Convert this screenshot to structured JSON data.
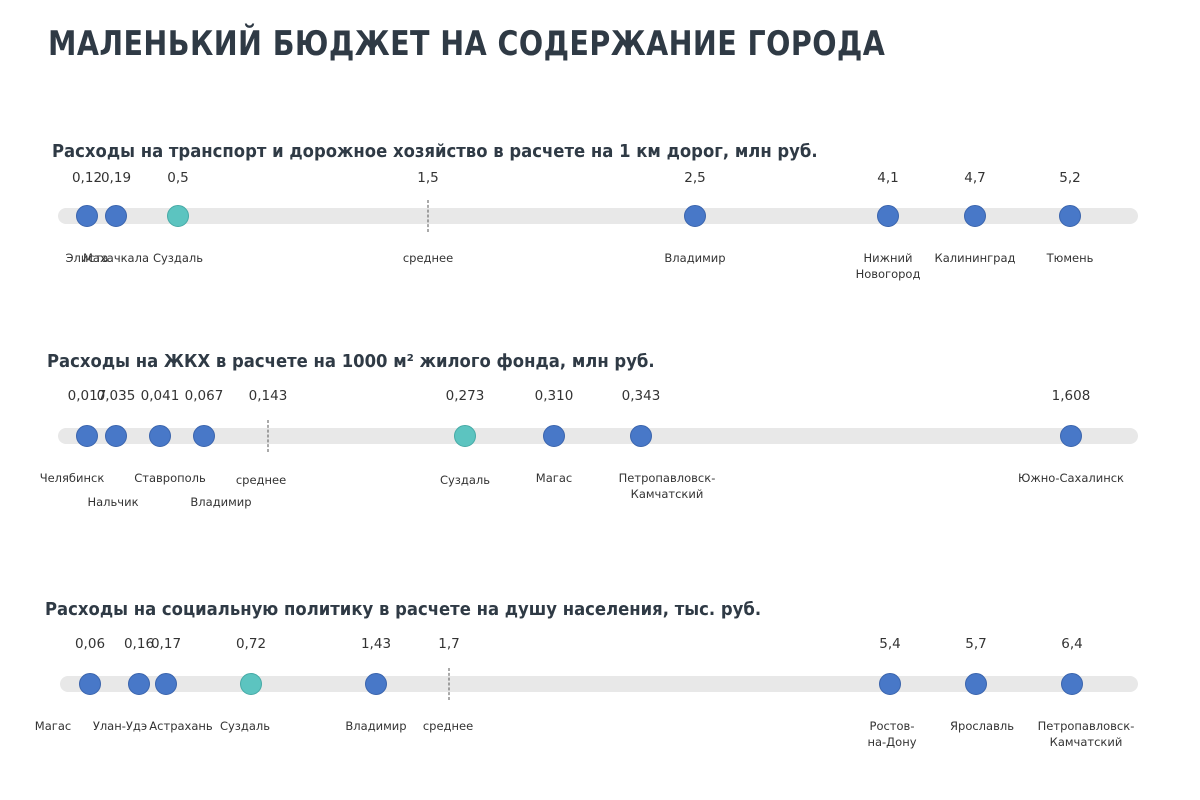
{
  "title": "МАЛЕНЬКИЙ БЮДЖЕТ НА СОДЕРЖАНИЕ ГОРОДА",
  "colors": {
    "dot": "#4878c8",
    "highlight": "#5cc4c0",
    "track": "#e8e8e8"
  },
  "chart_data": [
    {
      "type": "scatter",
      "title": "Расходы на транспорт и дорожное хозяйство в расчете на 1 км дорог, млн руб.",
      "points": [
        {
          "label": "0,12",
          "value": 0.12,
          "city": "Элиста"
        },
        {
          "label": "0,19",
          "value": 0.19,
          "city": "Махачкала"
        },
        {
          "label": "0,5",
          "value": 0.5,
          "city": "Суздаль",
          "highlight": true
        },
        {
          "label": "1,5",
          "value": 1.5,
          "city": "среднее",
          "average": true
        },
        {
          "label": "2,5",
          "value": 2.5,
          "city": "Владимир"
        },
        {
          "label": "4,1",
          "value": 4.1,
          "city": "Нижний\nНовогород"
        },
        {
          "label": "4,7",
          "value": 4.7,
          "city": "Калининград"
        },
        {
          "label": "5,2",
          "value": 5.2,
          "city": "Тюмень"
        }
      ]
    },
    {
      "type": "scatter",
      "title": "Расходы на ЖКХ в расчете на 1000 м² жилого фонда, млн руб.",
      "points": [
        {
          "label": "0,017",
          "value": 0.017,
          "city": "Челябинск"
        },
        {
          "label": "0,035",
          "value": 0.035,
          "city": "Нальчик"
        },
        {
          "label": "0,041",
          "value": 0.041,
          "city": "Ставрополь"
        },
        {
          "label": "0,067",
          "value": 0.067,
          "city": "Владимир"
        },
        {
          "label": "0,143",
          "value": 0.143,
          "city": "среднее",
          "average": true
        },
        {
          "label": "0,273",
          "value": 0.273,
          "city": "Суздаль",
          "highlight": true
        },
        {
          "label": "0,310",
          "value": 0.31,
          "city": "Магас"
        },
        {
          "label": "0,343",
          "value": 0.343,
          "city": "Петропавловск-\nКамчатский"
        },
        {
          "label": "1,608",
          "value": 1.608,
          "city": "Южно-Сахалинск"
        }
      ]
    },
    {
      "type": "scatter",
      "title": "Расходы на социальную политику в расчете на душу населения, тыс. руб.",
      "points": [
        {
          "label": "0,06",
          "value": 0.06,
          "city": "Магас"
        },
        {
          "label": "0,16",
          "value": 0.16,
          "city": "Улан-Удэ"
        },
        {
          "label": "0,17",
          "value": 0.17,
          "city": "Астрахань"
        },
        {
          "label": "0,72",
          "value": 0.72,
          "city": "Суздаль",
          "highlight": true
        },
        {
          "label": "1,43",
          "value": 1.43,
          "city": "Владимир"
        },
        {
          "label": "1,7",
          "value": 1.7,
          "city": "среднее",
          "average": true
        },
        {
          "label": "5,4",
          "value": 5.4,
          "city": "Ростов-\nна-Дону"
        },
        {
          "label": "5,7",
          "value": 5.7,
          "city": "Ярославль"
        },
        {
          "label": "6,4",
          "value": 6.4,
          "city": "Петропавловск-\nКамчатский"
        }
      ]
    }
  ]
}
